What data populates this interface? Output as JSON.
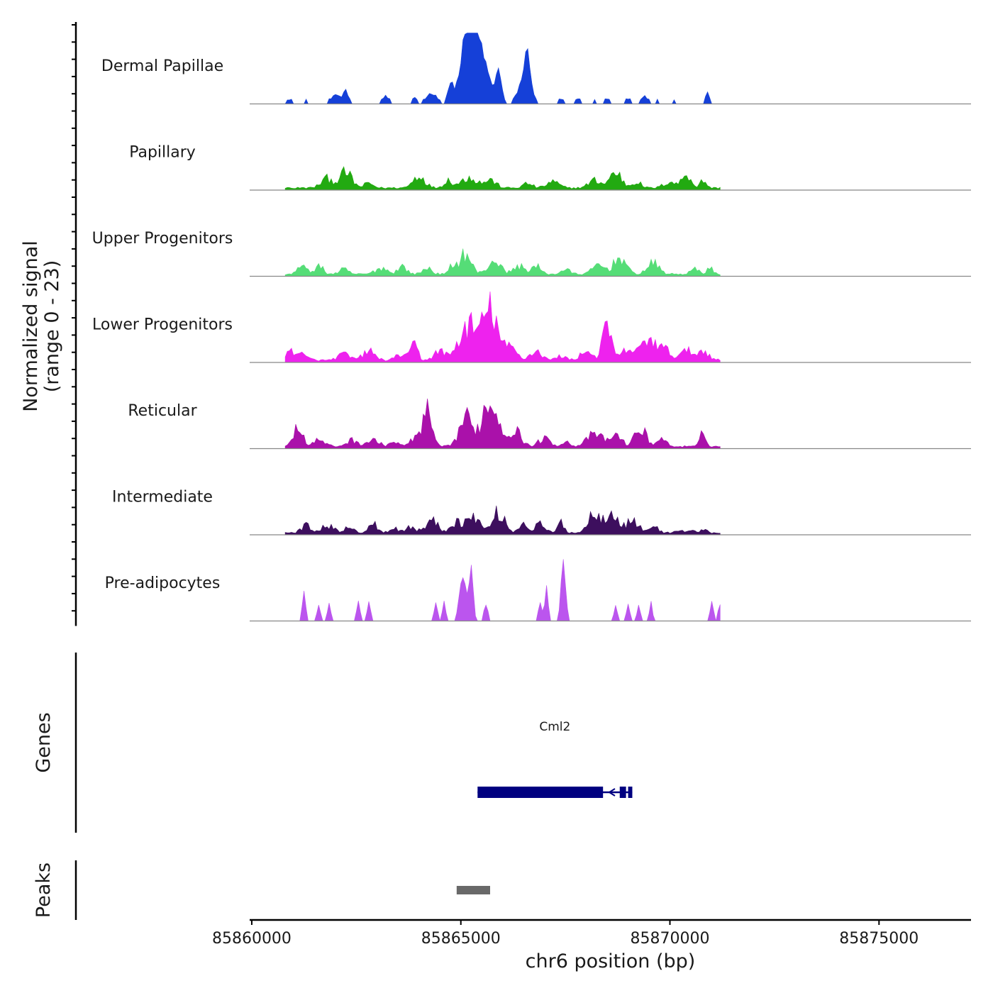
{
  "chart_data": {
    "type": "area",
    "y_axis_title": "Normalized signal",
    "y_axis_subtitle": "(range 0 - 23)",
    "ylim": [
      0,
      23
    ],
    "x_axis_title": "chr6 position (bp)",
    "xlim": [
      85859950,
      85877200
    ],
    "x_ticks": [
      {
        "value": 85860000,
        "label": "85860000"
      },
      {
        "value": 85865000,
        "label": "85865000"
      },
      {
        "value": 85870000,
        "label": "85870000"
      },
      {
        "value": 85875000,
        "label": "85875000"
      }
    ],
    "signal_start": 85860800,
    "signal_end": 85871200,
    "bin_size": 50,
    "tracks": [
      {
        "name": "Dermal Papillae",
        "color": "#1540d8",
        "sparse": true,
        "peaks": [
          [
            85860900,
            1.5,
            80
          ],
          [
            85861300,
            1.5,
            60
          ],
          [
            85862000,
            3,
            150
          ],
          [
            85862250,
            4,
            100
          ],
          [
            85863200,
            2.5,
            100
          ],
          [
            85863900,
            2,
            60
          ],
          [
            85864300,
            3.5,
            180
          ],
          [
            85864750,
            6,
            100
          ],
          [
            85865050,
            10,
            180
          ],
          [
            85865250,
            21,
            200
          ],
          [
            85865500,
            14,
            250
          ],
          [
            85865900,
            10,
            100
          ],
          [
            85866500,
            7,
            200
          ],
          [
            85866600,
            11,
            110
          ],
          [
            85867400,
            1.5,
            80
          ],
          [
            85867800,
            1.5,
            80
          ],
          [
            85868200,
            1.5,
            60
          ],
          [
            85868500,
            1.5,
            70
          ],
          [
            85869000,
            1.5,
            100
          ],
          [
            85869400,
            2.5,
            100
          ],
          [
            85869700,
            1.5,
            50
          ],
          [
            85870100,
            1.5,
            50
          ],
          [
            85870900,
            3.5,
            80
          ]
        ]
      },
      {
        "name": "Papillary",
        "color": "#22aa11",
        "sparse": false,
        "peaks": [
          [
            85861800,
            3,
            200
          ],
          [
            85862250,
            5,
            200
          ],
          [
            85862800,
            1.5,
            150
          ],
          [
            85864000,
            4,
            200
          ],
          [
            85864700,
            2.5,
            150
          ],
          [
            85865200,
            3.5,
            250
          ],
          [
            85865700,
            2.5,
            200
          ],
          [
            85866600,
            1.5,
            150
          ],
          [
            85867200,
            2,
            200
          ],
          [
            85868200,
            2.5,
            200
          ],
          [
            85868700,
            5,
            200
          ],
          [
            85869200,
            2,
            150
          ],
          [
            85870000,
            2,
            200
          ],
          [
            85870400,
            4.5,
            150
          ],
          [
            85870800,
            2.5,
            100
          ]
        ]
      },
      {
        "name": "Upper Progenitors",
        "color": "#55dd77",
        "sparse": false,
        "peaks": [
          [
            85861200,
            2.5,
            150
          ],
          [
            85861600,
            2.5,
            150
          ],
          [
            85862200,
            1.5,
            150
          ],
          [
            85863100,
            2,
            200
          ],
          [
            85863600,
            2.5,
            150
          ],
          [
            85864200,
            2,
            150
          ],
          [
            85864800,
            2.5,
            100
          ],
          [
            85865100,
            6.5,
            200
          ],
          [
            85865800,
            4.5,
            200
          ],
          [
            85866400,
            2.5,
            200
          ],
          [
            85866800,
            2.5,
            150
          ],
          [
            85867500,
            1.5,
            150
          ],
          [
            85868300,
            3,
            200
          ],
          [
            85868800,
            5.5,
            200
          ],
          [
            85869600,
            3.5,
            200
          ],
          [
            85870600,
            1.5,
            150
          ],
          [
            85870950,
            2,
            100
          ]
        ]
      },
      {
        "name": "Lower Progenitors",
        "color": "#ee22ee",
        "sparse": false,
        "peaks": [
          [
            85861000,
            3,
            300
          ],
          [
            85862200,
            2,
            200
          ],
          [
            85862800,
            3,
            200
          ],
          [
            85863600,
            2,
            200
          ],
          [
            85863900,
            5.5,
            100
          ],
          [
            85864500,
            3,
            200
          ],
          [
            85864900,
            2.5,
            150
          ],
          [
            85865200,
            11,
            250
          ],
          [
            85865700,
            17,
            250
          ],
          [
            85866200,
            4,
            200
          ],
          [
            85866800,
            3,
            200
          ],
          [
            85867400,
            1.5,
            150
          ],
          [
            85868000,
            3,
            200
          ],
          [
            85868500,
            11,
            150
          ],
          [
            85869000,
            3.5,
            200
          ],
          [
            85869500,
            7,
            250
          ],
          [
            85869900,
            3,
            200
          ],
          [
            85870400,
            3,
            200
          ],
          [
            85870800,
            3,
            200
          ]
        ]
      },
      {
        "name": "Reticular",
        "color": "#aa11aa",
        "sparse": false,
        "peaks": [
          [
            85861100,
            7,
            150
          ],
          [
            85861600,
            2,
            200
          ],
          [
            85862400,
            2,
            200
          ],
          [
            85862900,
            2,
            200
          ],
          [
            85863400,
            1.5,
            150
          ],
          [
            85863900,
            3,
            150
          ],
          [
            85864200,
            11,
            150
          ],
          [
            85865100,
            9,
            200
          ],
          [
            85865700,
            14,
            300
          ],
          [
            85866300,
            5,
            200
          ],
          [
            85867000,
            2.5,
            200
          ],
          [
            85867500,
            1.5,
            150
          ],
          [
            85868200,
            4,
            250
          ],
          [
            85868700,
            3.5,
            200
          ],
          [
            85869300,
            5.5,
            200
          ],
          [
            85869800,
            2.5,
            150
          ],
          [
            85870800,
            4.5,
            100
          ]
        ]
      },
      {
        "name": "Intermediate",
        "color": "#3d0f5e",
        "sparse": false,
        "peaks": [
          [
            85861300,
            2.5,
            150
          ],
          [
            85861800,
            2.5,
            200
          ],
          [
            85862300,
            2,
            150
          ],
          [
            85862900,
            3,
            150
          ],
          [
            85863400,
            1.5,
            150
          ],
          [
            85863800,
            2,
            150
          ],
          [
            85864300,
            4,
            200
          ],
          [
            85864900,
            3.5,
            200
          ],
          [
            85865300,
            5.5,
            200
          ],
          [
            85865900,
            6.5,
            200
          ],
          [
            85866500,
            3,
            150
          ],
          [
            85866900,
            3,
            150
          ],
          [
            85867400,
            3.5,
            100
          ],
          [
            85868200,
            6.5,
            200
          ],
          [
            85868600,
            7,
            200
          ],
          [
            85869100,
            4,
            200
          ],
          [
            85869600,
            2,
            150
          ],
          [
            85870200,
            1,
            100
          ],
          [
            85870500,
            1,
            100
          ],
          [
            85870800,
            1,
            100
          ]
        ]
      },
      {
        "name": "Pre-adipocytes",
        "color": "#bb55ee",
        "sparse": true,
        "peaks": [
          [
            85861250,
            9,
            60
          ],
          [
            85861600,
            6,
            50
          ],
          [
            85861850,
            6,
            50
          ],
          [
            85862550,
            6,
            60
          ],
          [
            85862800,
            6,
            60
          ],
          [
            85864400,
            6,
            60
          ],
          [
            85864600,
            6,
            60
          ],
          [
            85865050,
            14,
            120
          ],
          [
            85865250,
            18,
            60
          ],
          [
            85865600,
            6,
            60
          ],
          [
            85866900,
            6,
            60
          ],
          [
            85867050,
            12,
            50
          ],
          [
            85867450,
            18,
            80
          ],
          [
            85868700,
            6,
            50
          ],
          [
            85869000,
            6,
            50
          ],
          [
            85869250,
            6,
            50
          ],
          [
            85869550,
            6,
            50
          ],
          [
            85871000,
            6,
            60
          ],
          [
            85871200,
            6,
            60
          ]
        ]
      }
    ],
    "genes_panel_label": "Genes",
    "gene": {
      "name": "Cml2",
      "start": 85865400,
      "end": 85869100,
      "strand": "-",
      "exons": [
        [
          85865400,
          85868400
        ],
        [
          85868800,
          85868950
        ],
        [
          85869000,
          85869100
        ]
      ],
      "color": "#000080"
    },
    "peaks_panel_label": "Peaks",
    "peak_regions": [
      {
        "start": 85864900,
        "end": 85865700,
        "color": "#696969"
      }
    ]
  }
}
